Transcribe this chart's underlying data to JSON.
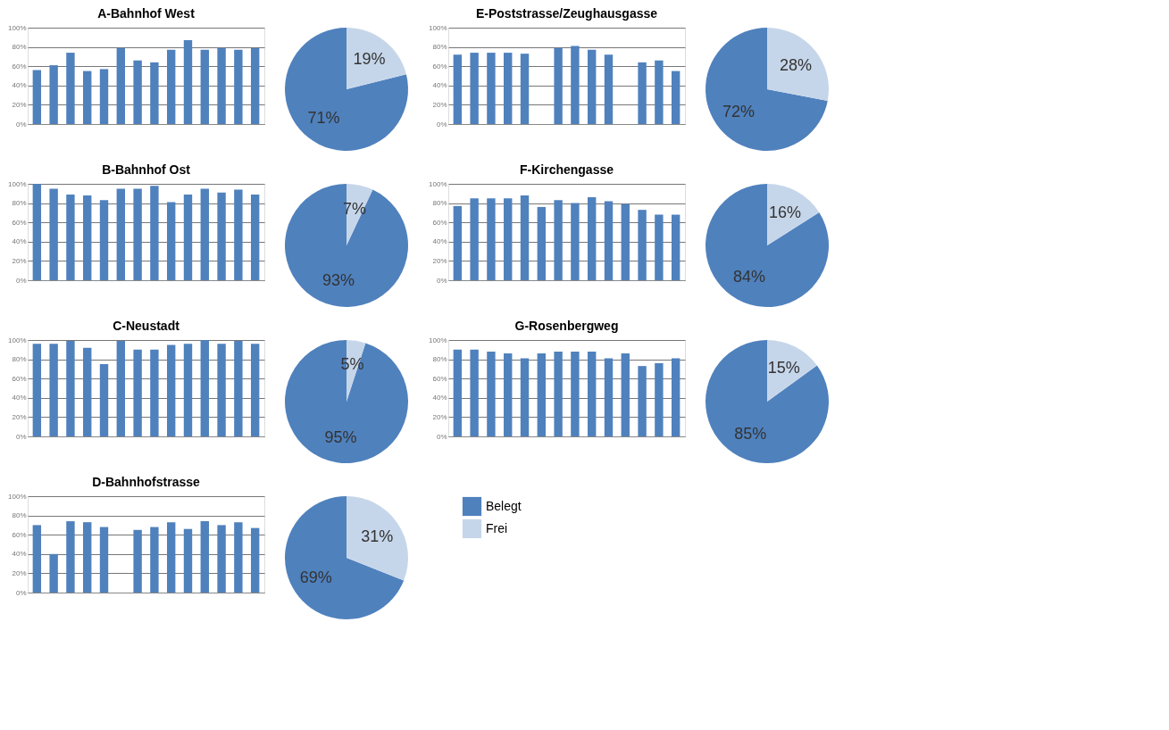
{
  "chart_data": [
    {
      "type": "bar",
      "title": "A-Bahnhof West",
      "categories": [
        null,
        null,
        null,
        null,
        null,
        null,
        null,
        null,
        null,
        null,
        null,
        null,
        null,
        null
      ],
      "values": [
        56,
        61,
        74,
        55,
        57,
        79,
        66,
        64,
        77,
        87,
        77,
        79,
        77,
        79
      ],
      "color": "#4f81bd",
      "ylim": [
        0,
        100
      ],
      "yticks": [
        {
          "value": 0,
          "label": "0%"
        },
        {
          "value": 20,
          "label": "20%"
        },
        {
          "value": 40,
          "label": "40%"
        },
        {
          "value": 60,
          "label": "60%"
        },
        {
          "value": 80,
          "label": "80%"
        },
        {
          "value": 100,
          "label": "100%"
        }
      ],
      "grid": "y"
    },
    {
      "type": "pie",
      "categories": [
        null,
        null
      ],
      "values": [
        71,
        19
      ],
      "colors": [
        "#4f81bd",
        "#c6d6ea"
      ],
      "value_labels": [
        "71%",
        "19%"
      ]
    },
    {
      "type": "bar",
      "title": "E-Poststrasse/Zeughausgasse",
      "categories": [
        null,
        null,
        null,
        null,
        null,
        null,
        null,
        null,
        null,
        null,
        null,
        null,
        null,
        null
      ],
      "values": [
        72,
        74,
        74,
        74,
        73,
        null,
        79,
        81,
        77,
        72,
        null,
        64,
        66,
        55
      ],
      "color": "#4f81bd",
      "ylim": [
        0,
        100
      ],
      "yticks": [
        {
          "value": 0,
          "label": "0%"
        },
        {
          "value": 20,
          "label": "20%"
        },
        {
          "value": 40,
          "label": "40%"
        },
        {
          "value": 60,
          "label": "60%"
        },
        {
          "value": 80,
          "label": "80%"
        },
        {
          "value": 100,
          "label": "100%"
        }
      ],
      "grid": "y"
    },
    {
      "type": "pie",
      "categories": [
        null,
        null
      ],
      "values": [
        72,
        28
      ],
      "colors": [
        "#4f81bd",
        "#c6d6ea"
      ],
      "value_labels": [
        "72%",
        "28%"
      ]
    },
    {
      "type": "bar",
      "title": "B-Bahnhof Ost",
      "categories": [
        null,
        null,
        null,
        null,
        null,
        null,
        null,
        null,
        null,
        null,
        null,
        null,
        null,
        null
      ],
      "values": [
        100,
        95,
        89,
        88,
        83,
        95,
        95,
        98,
        81,
        89,
        95,
        91,
        94,
        89
      ],
      "color": "#4f81bd",
      "ylim": [
        0,
        100
      ],
      "yticks": [
        {
          "value": 0,
          "label": "0%"
        },
        {
          "value": 20,
          "label": "20%"
        },
        {
          "value": 40,
          "label": "40%"
        },
        {
          "value": 60,
          "label": "60%"
        },
        {
          "value": 80,
          "label": "80%"
        },
        {
          "value": 100,
          "label": "100%"
        }
      ],
      "grid": "y"
    },
    {
      "type": "pie",
      "categories": [
        null,
        null
      ],
      "values": [
        93,
        7
      ],
      "colors": [
        "#4f81bd",
        "#c6d6ea"
      ],
      "value_labels": [
        "93%",
        "7%"
      ]
    },
    {
      "type": "bar",
      "title": "F-Kirchengasse",
      "categories": [
        null,
        null,
        null,
        null,
        null,
        null,
        null,
        null,
        null,
        null,
        null,
        null,
        null,
        null
      ],
      "values": [
        77,
        85,
        85,
        85,
        88,
        76,
        83,
        80,
        86,
        82,
        79,
        73,
        68,
        68
      ],
      "color": "#4f81bd",
      "ylim": [
        0,
        100
      ],
      "yticks": [
        {
          "value": 0,
          "label": "0%"
        },
        {
          "value": 20,
          "label": "20%"
        },
        {
          "value": 40,
          "label": "40%"
        },
        {
          "value": 60,
          "label": "60%"
        },
        {
          "value": 80,
          "label": "80%"
        },
        {
          "value": 100,
          "label": "100%"
        }
      ],
      "grid": "y"
    },
    {
      "type": "pie",
      "categories": [
        null,
        null
      ],
      "values": [
        84,
        16
      ],
      "colors": [
        "#4f81bd",
        "#c6d6ea"
      ],
      "value_labels": [
        "84%",
        "16%"
      ]
    },
    {
      "type": "bar",
      "title": "C-Neustadt",
      "categories": [
        null,
        null,
        null,
        null,
        null,
        null,
        null,
        null,
        null,
        null,
        null,
        null,
        null,
        null
      ],
      "values": [
        96,
        96,
        99,
        92,
        75,
        99,
        90,
        90,
        95,
        96,
        100,
        96,
        99,
        96
      ],
      "color": "#4f81bd",
      "ylim": [
        0,
        100
      ],
      "yticks": [
        {
          "value": 0,
          "label": "0%"
        },
        {
          "value": 20,
          "label": "20%"
        },
        {
          "value": 40,
          "label": "40%"
        },
        {
          "value": 60,
          "label": "60%"
        },
        {
          "value": 80,
          "label": "80%"
        },
        {
          "value": 100,
          "label": "100%"
        }
      ],
      "grid": "y"
    },
    {
      "type": "pie",
      "categories": [
        null,
        null
      ],
      "values": [
        95,
        5
      ],
      "colors": [
        "#4f81bd",
        "#c6d6ea"
      ],
      "value_labels": [
        "95%",
        "5%"
      ]
    },
    {
      "type": "bar",
      "title": "G-Rosenbergweg",
      "categories": [
        null,
        null,
        null,
        null,
        null,
        null,
        null,
        null,
        null,
        null,
        null,
        null,
        null,
        null
      ],
      "values": [
        90,
        90,
        88,
        86,
        81,
        86,
        88,
        88,
        88,
        81,
        86,
        73,
        76,
        81
      ],
      "color": "#4f81bd",
      "ylim": [
        0,
        100
      ],
      "yticks": [
        {
          "value": 0,
          "label": "0%"
        },
        {
          "value": 20,
          "label": "20%"
        },
        {
          "value": 40,
          "label": "40%"
        },
        {
          "value": 60,
          "label": "60%"
        },
        {
          "value": 80,
          "label": "80%"
        },
        {
          "value": 100,
          "label": "100%"
        }
      ],
      "grid": "y"
    },
    {
      "type": "pie",
      "categories": [
        null,
        null
      ],
      "values": [
        85,
        15
      ],
      "colors": [
        "#4f81bd",
        "#c6d6ea"
      ],
      "value_labels": [
        "85%",
        "15%"
      ]
    },
    {
      "type": "bar",
      "title": "D-Bahnhofstrasse",
      "categories": [
        null,
        null,
        null,
        null,
        null,
        null,
        null,
        null,
        null,
        null,
        null,
        null,
        null,
        null
      ],
      "values": [
        70,
        40,
        74,
        73,
        68,
        null,
        65,
        68,
        73,
        66,
        74,
        70,
        73,
        67
      ],
      "color": "#4f81bd",
      "ylim": [
        0,
        100
      ],
      "yticks": [
        {
          "value": 0,
          "label": "0%"
        },
        {
          "value": 20,
          "label": "20%"
        },
        {
          "value": 40,
          "label": "40%"
        },
        {
          "value": 60,
          "label": "60%"
        },
        {
          "value": 80,
          "label": "80%"
        },
        {
          "value": 100,
          "label": "100%"
        }
      ],
      "grid": "y"
    },
    {
      "type": "pie",
      "categories": [
        "Belegt",
        "Frei"
      ],
      "values": [
        69,
        31
      ],
      "colors": [
        "#4f81bd",
        "#c6d6ea"
      ],
      "value_labels": [
        "69%",
        "31%"
      ],
      "legend": "right"
    }
  ]
}
